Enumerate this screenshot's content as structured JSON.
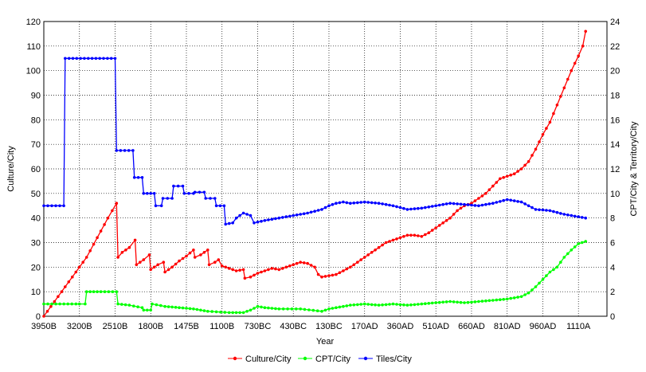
{
  "chart_data": {
    "type": "line",
    "xlabel": "Year",
    "ylabel_left": "Culture/City",
    "ylabel_right": "CPT/City & Territory/City",
    "ylim_left": [
      0,
      120
    ],
    "ylim_right": [
      0,
      24
    ],
    "yticks_left": [
      "0",
      "10",
      "20",
      "30",
      "40",
      "50",
      "60",
      "70",
      "80",
      "90",
      "100",
      "110",
      "120"
    ],
    "yticks_right": [
      "0",
      "2",
      "4",
      "6",
      "8",
      "10",
      "12",
      "14",
      "16",
      "18",
      "20",
      "22",
      "24"
    ],
    "x_tick_labels": [
      "3950B",
      "3200B",
      "2510B",
      "1800B",
      "1475B",
      "1100B",
      "730BC",
      "430BC",
      "130BC",
      "170AD",
      "360AD",
      "510AD",
      "660AD",
      "810AD",
      "960AD",
      "1110A"
    ],
    "x_tick_positions": [
      0,
      5,
      10,
      15,
      20,
      25,
      30,
      35,
      40,
      45,
      50,
      55,
      60,
      65,
      70,
      75
    ],
    "x_range": [
      0,
      79
    ],
    "grid": true,
    "legend_position": "bottom",
    "series": [
      {
        "name": "Culture/City",
        "axis": "left",
        "color": "#ff0000",
        "points": [
          [
            0,
            0
          ],
          [
            1.5,
            6
          ],
          [
            3,
            12
          ],
          [
            4.5,
            18
          ],
          [
            6,
            24
          ],
          [
            7.5,
            32
          ],
          [
            9,
            40
          ],
          [
            10.2,
            46
          ],
          [
            10.4,
            24
          ],
          [
            11,
            26
          ],
          [
            12,
            28
          ],
          [
            12.8,
            31
          ],
          [
            13,
            21
          ],
          [
            14,
            23
          ],
          [
            14.8,
            25
          ],
          [
            15,
            19
          ],
          [
            16,
            21
          ],
          [
            16.8,
            22
          ],
          [
            17,
            18
          ],
          [
            18,
            20
          ],
          [
            19,
            22.5
          ],
          [
            20,
            24.5
          ],
          [
            21,
            27
          ],
          [
            21.2,
            24
          ],
          [
            22,
            25
          ],
          [
            23,
            27
          ],
          [
            23.2,
            21
          ],
          [
            24,
            22
          ],
          [
            24.5,
            23
          ],
          [
            25,
            20.5
          ],
          [
            26,
            19.5
          ],
          [
            27,
            18.5
          ],
          [
            28,
            19
          ],
          [
            28.2,
            15.5
          ],
          [
            29,
            16
          ],
          [
            30,
            17.5
          ],
          [
            31,
            18.5
          ],
          [
            32,
            19.5
          ],
          [
            33,
            19
          ],
          [
            34,
            20
          ],
          [
            35,
            21
          ],
          [
            36,
            22
          ],
          [
            37,
            21.5
          ],
          [
            38,
            20
          ],
          [
            38.5,
            17
          ],
          [
            39,
            16
          ],
          [
            40,
            16.5
          ],
          [
            41,
            17
          ],
          [
            42,
            18.5
          ],
          [
            43,
            20
          ],
          [
            44,
            22
          ],
          [
            45,
            24
          ],
          [
            46,
            26
          ],
          [
            47,
            28
          ],
          [
            48,
            30
          ],
          [
            49,
            31
          ],
          [
            50,
            32
          ],
          [
            51,
            33
          ],
          [
            52,
            33
          ],
          [
            53,
            32.5
          ],
          [
            54,
            34
          ],
          [
            55,
            36
          ],
          [
            56,
            38
          ],
          [
            57,
            40
          ],
          [
            58,
            43
          ],
          [
            59,
            45
          ],
          [
            60,
            46
          ],
          [
            61,
            48
          ],
          [
            62,
            50
          ],
          [
            63,
            53
          ],
          [
            64,
            56
          ],
          [
            65,
            57
          ],
          [
            66,
            58
          ],
          [
            67,
            60
          ],
          [
            68,
            63
          ],
          [
            69,
            68
          ],
          [
            70,
            74
          ],
          [
            71,
            79
          ],
          [
            72,
            86
          ],
          [
            73,
            93
          ],
          [
            74,
            100
          ],
          [
            75,
            106
          ],
          [
            75.6,
            110
          ],
          [
            76,
            116
          ]
        ]
      },
      {
        "name": "CPT/City",
        "axis": "right",
        "color": "#00ff00",
        "points": [
          [
            0,
            1
          ],
          [
            4.5,
            1
          ],
          [
            5,
            1
          ],
          [
            5.8,
            1
          ],
          [
            6,
            2
          ],
          [
            8,
            2
          ],
          [
            10.2,
            2
          ],
          [
            10.4,
            1
          ],
          [
            12,
            0.9
          ],
          [
            13.8,
            0.7
          ],
          [
            14,
            0.5
          ],
          [
            15,
            0.5
          ],
          [
            15.2,
            1
          ],
          [
            17,
            0.8
          ],
          [
            19,
            0.7
          ],
          [
            21,
            0.6
          ],
          [
            23,
            0.4
          ],
          [
            26,
            0.3
          ],
          [
            28,
            0.3
          ],
          [
            29,
            0.5
          ],
          [
            30,
            0.8
          ],
          [
            31,
            0.7
          ],
          [
            33,
            0.6
          ],
          [
            36,
            0.6
          ],
          [
            39,
            0.4
          ],
          [
            40,
            0.6
          ],
          [
            42,
            0.8
          ],
          [
            43,
            0.9
          ],
          [
            45,
            1
          ],
          [
            47,
            0.9
          ],
          [
            49,
            1
          ],
          [
            51,
            0.9
          ],
          [
            53,
            1
          ],
          [
            55,
            1.1
          ],
          [
            57,
            1.2
          ],
          [
            59,
            1.1
          ],
          [
            61,
            1.2
          ],
          [
            63,
            1.3
          ],
          [
            65,
            1.4
          ],
          [
            67,
            1.6
          ],
          [
            68,
            1.9
          ],
          [
            69,
            2.4
          ],
          [
            70,
            3
          ],
          [
            71,
            3.6
          ],
          [
            72,
            4
          ],
          [
            73,
            4.8
          ],
          [
            74,
            5.4
          ],
          [
            75,
            5.9
          ],
          [
            76,
            6.1
          ]
        ]
      },
      {
        "name": "Tiles/City",
        "axis": "right",
        "color": "#0000ff",
        "points": [
          [
            0,
            9
          ],
          [
            2.8,
            9
          ],
          [
            3,
            21
          ],
          [
            10,
            21
          ],
          [
            10.2,
            13.5
          ],
          [
            12.5,
            13.5
          ],
          [
            12.7,
            11.3
          ],
          [
            13.8,
            11.3
          ],
          [
            14,
            10
          ],
          [
            15.5,
            10
          ],
          [
            15.7,
            9
          ],
          [
            16.5,
            9
          ],
          [
            16.7,
            9.6
          ],
          [
            18,
            9.6
          ],
          [
            18.2,
            10.6
          ],
          [
            19.5,
            10.6
          ],
          [
            19.7,
            10
          ],
          [
            21,
            10
          ],
          [
            21.2,
            10.1
          ],
          [
            22.5,
            10.1
          ],
          [
            22.7,
            9.6
          ],
          [
            24,
            9.6
          ],
          [
            24.2,
            9
          ],
          [
            25.3,
            9
          ],
          [
            25.5,
            7.5
          ],
          [
            26.5,
            7.6
          ],
          [
            27,
            8
          ],
          [
            28,
            8.4
          ],
          [
            29,
            8.2
          ],
          [
            29.5,
            7.6
          ],
          [
            31,
            7.8
          ],
          [
            33,
            8
          ],
          [
            35,
            8.2
          ],
          [
            37,
            8.4
          ],
          [
            39,
            8.7
          ],
          [
            40,
            9
          ],
          [
            41,
            9.2
          ],
          [
            42,
            9.3
          ],
          [
            43,
            9.2
          ],
          [
            45,
            9.3
          ],
          [
            47,
            9.2
          ],
          [
            49,
            9
          ],
          [
            51,
            8.7
          ],
          [
            53,
            8.8
          ],
          [
            55,
            9
          ],
          [
            57,
            9.2
          ],
          [
            59,
            9.1
          ],
          [
            61,
            9
          ],
          [
            63,
            9.2
          ],
          [
            65,
            9.5
          ],
          [
            67,
            9.3
          ],
          [
            68,
            9
          ],
          [
            69,
            8.7
          ],
          [
            71,
            8.6
          ],
          [
            73,
            8.3
          ],
          [
            75,
            8.1
          ],
          [
            76,
            8
          ]
        ]
      }
    ]
  }
}
